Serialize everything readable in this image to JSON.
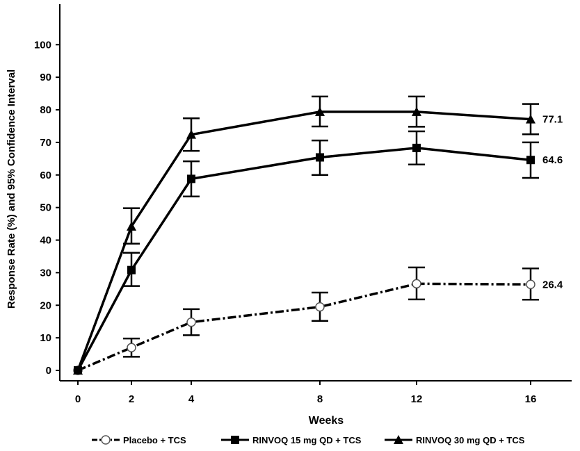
{
  "chart_data": {
    "type": "line",
    "title": "",
    "xlabel": "Weeks",
    "ylabel": "Response Rate (%) and 95% Confidence Interval",
    "x": [
      0,
      2,
      4,
      8,
      12,
      16
    ],
    "x_tick_labels": [
      "0",
      "2",
      "4",
      "8",
      "12",
      "16"
    ],
    "y_ticks": [
      0,
      10,
      20,
      30,
      40,
      50,
      60,
      70,
      80,
      90,
      100
    ],
    "ylim": [
      0,
      100
    ],
    "grid": false,
    "legend_position": "bottom",
    "series": [
      {
        "name": "Placebo + TCS",
        "marker": "open-circle",
        "line_style": "dash-dot",
        "values": [
          0,
          7,
          14.8,
          19.5,
          26.6,
          26.4
        ],
        "ci_low": [
          0,
          4.2,
          10.8,
          15.2,
          21.8,
          21.7
        ],
        "ci_high": [
          0,
          9.8,
          18.8,
          23.9,
          31.6,
          31.3
        ],
        "end_label": "26.4"
      },
      {
        "name": "RINVOQ 15 mg QD + TCS",
        "marker": "filled-square",
        "line_style": "solid",
        "values": [
          0,
          30.8,
          58.8,
          65.4,
          68.3,
          64.6
        ],
        "ci_low": [
          0,
          25.9,
          53.4,
          60,
          63.2,
          59.1
        ],
        "ci_high": [
          0,
          36.1,
          64.2,
          70.6,
          73.4,
          70
        ],
        "end_label": "64.6"
      },
      {
        "name": "RINVOQ 30 mg QD + TCS",
        "marker": "filled-triangle",
        "line_style": "solid",
        "values": [
          0,
          44.2,
          72.4,
          79.4,
          79.4,
          77.1
        ],
        "ci_low": [
          0,
          38.9,
          67.4,
          74.9,
          74.8,
          72.5
        ],
        "ci_high": [
          0,
          49.8,
          77.4,
          84.1,
          84.1,
          81.8
        ],
        "end_label": "77.1"
      }
    ]
  }
}
